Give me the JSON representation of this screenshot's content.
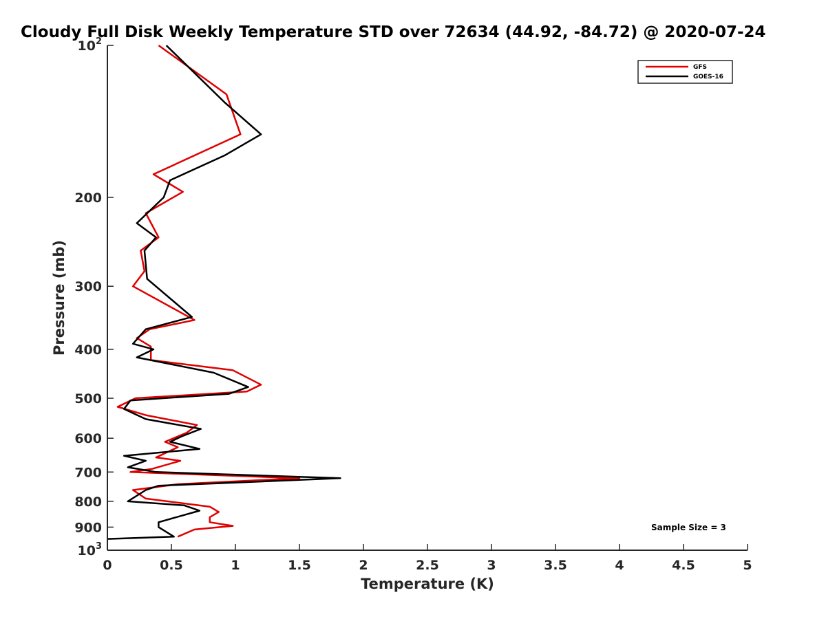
{
  "chart_data": {
    "type": "line",
    "title": "Cloudy Full Disk Weekly Temperature STD over 72634 (44.92, -84.72) @ 2020-07-24",
    "xlabel": "Temperature (K)",
    "ylabel": "Pressure (mb)",
    "xlim": [
      0,
      5
    ],
    "ylim": [
      100,
      1000
    ],
    "y_scale": "log",
    "y_reversed": true,
    "x_ticks": [
      0,
      0.5,
      1,
      1.5,
      2,
      2.5,
      3,
      3.5,
      4,
      4.5,
      5
    ],
    "x_tick_labels": [
      "0",
      "0.5",
      "1",
      "1.5",
      "2",
      "2.5",
      "3",
      "3.5",
      "4",
      "4.5",
      "5"
    ],
    "y_ticks": [
      100,
      200,
      300,
      400,
      500,
      600,
      700,
      800,
      900,
      1000
    ],
    "y_tick_labels": [
      {
        "base": "10",
        "exp": "2"
      },
      {
        "base": "200",
        "exp": ""
      },
      {
        "base": "300",
        "exp": ""
      },
      {
        "base": "400",
        "exp": ""
      },
      {
        "base": "500",
        "exp": ""
      },
      {
        "base": "600",
        "exp": ""
      },
      {
        "base": "700",
        "exp": ""
      },
      {
        "base": "800",
        "exp": ""
      },
      {
        "base": "900",
        "exp": ""
      },
      {
        "base": "10",
        "exp": "3"
      }
    ],
    "grid": false,
    "legend_position": "top-right",
    "annotation": "Sample Size = 3",
    "series": [
      {
        "name": "GFS",
        "color": "#e00000",
        "points": [
          [
            0.4,
            100
          ],
          [
            0.93,
            125
          ],
          [
            1.04,
            150
          ],
          [
            0.36,
            180
          ],
          [
            0.59,
            195
          ],
          [
            0.3,
            215
          ],
          [
            0.4,
            240
          ],
          [
            0.26,
            255
          ],
          [
            0.29,
            280
          ],
          [
            0.2,
            300
          ],
          [
            0.68,
            350
          ],
          [
            0.33,
            365
          ],
          [
            0.23,
            380
          ],
          [
            0.34,
            395
          ],
          [
            0.34,
            420
          ],
          [
            0.98,
            440
          ],
          [
            1.2,
            470
          ],
          [
            1.09,
            485
          ],
          [
            0.22,
            500
          ],
          [
            0.08,
            520
          ],
          [
            0.3,
            540
          ],
          [
            0.7,
            565
          ],
          [
            0.62,
            585
          ],
          [
            0.45,
            610
          ],
          [
            0.55,
            625
          ],
          [
            0.38,
            655
          ],
          [
            0.57,
            665
          ],
          [
            0.35,
            690
          ],
          [
            0.18,
            700
          ],
          [
            1.5,
            720
          ],
          [
            0.55,
            740
          ],
          [
            0.2,
            760
          ],
          [
            0.3,
            790
          ],
          [
            0.8,
            820
          ],
          [
            0.87,
            840
          ],
          [
            0.8,
            860
          ],
          [
            0.8,
            880
          ],
          [
            0.98,
            895
          ],
          [
            0.68,
            910
          ],
          [
            0.55,
            940
          ]
        ]
      },
      {
        "name": "GOES-16",
        "color": "#000000",
        "points": [
          [
            0.46,
            100
          ],
          [
            0.92,
            130
          ],
          [
            1.2,
            150
          ],
          [
            0.92,
            165
          ],
          [
            0.49,
            185
          ],
          [
            0.44,
            200
          ],
          [
            0.23,
            225
          ],
          [
            0.38,
            240
          ],
          [
            0.29,
            255
          ],
          [
            0.31,
            290
          ],
          [
            0.66,
            345
          ],
          [
            0.3,
            365
          ],
          [
            0.2,
            390
          ],
          [
            0.36,
            400
          ],
          [
            0.23,
            415
          ],
          [
            0.83,
            445
          ],
          [
            1.1,
            475
          ],
          [
            0.95,
            490
          ],
          [
            0.18,
            505
          ],
          [
            0.13,
            525
          ],
          [
            0.3,
            550
          ],
          [
            0.73,
            575
          ],
          [
            0.58,
            595
          ],
          [
            0.49,
            610
          ],
          [
            0.72,
            630
          ],
          [
            0.13,
            650
          ],
          [
            0.3,
            665
          ],
          [
            0.16,
            685
          ],
          [
            0.38,
            700
          ],
          [
            1.82,
            720
          ],
          [
            0.4,
            745
          ],
          [
            0.3,
            760
          ],
          [
            0.16,
            800
          ],
          [
            0.6,
            815
          ],
          [
            0.72,
            835
          ],
          [
            0.4,
            880
          ],
          [
            0.4,
            900
          ],
          [
            0.52,
            940
          ],
          [
            0.0,
            950
          ]
        ]
      }
    ]
  }
}
